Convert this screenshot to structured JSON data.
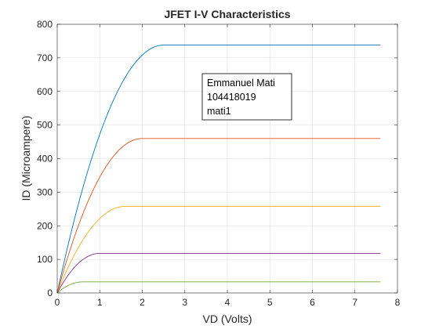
{
  "chart_data": {
    "type": "line",
    "title": "JFET I-V Characteristics",
    "xlabel": "VD (Volts)",
    "ylabel": "ID (Microampere)",
    "xlim": [
      0,
      8
    ],
    "ylim": [
      0,
      800
    ],
    "x_ticks": [
      "0",
      "1",
      "2",
      "3",
      "4",
      "5",
      "6",
      "7",
      "8"
    ],
    "y_ticks": [
      "0",
      "100",
      "200",
      "300",
      "400",
      "500",
      "600",
      "700",
      "800"
    ],
    "grid": true,
    "x_max": 7.6,
    "series": [
      {
        "color": "#0072BD",
        "vsat": 2.5,
        "isat": 738
      },
      {
        "color": "#D95319",
        "vsat": 2.0,
        "isat": 460
      },
      {
        "color": "#EDB120",
        "vsat": 1.6,
        "isat": 258
      },
      {
        "color": "#7E2F8E",
        "vsat": 1.0,
        "isat": 118
      },
      {
        "color": "#77AC30",
        "vsat": 0.6,
        "isat": 33
      }
    ],
    "annotation": {
      "lines": [
        "Emmanuel Mati",
        "104418019",
        "mati1"
      ]
    }
  }
}
